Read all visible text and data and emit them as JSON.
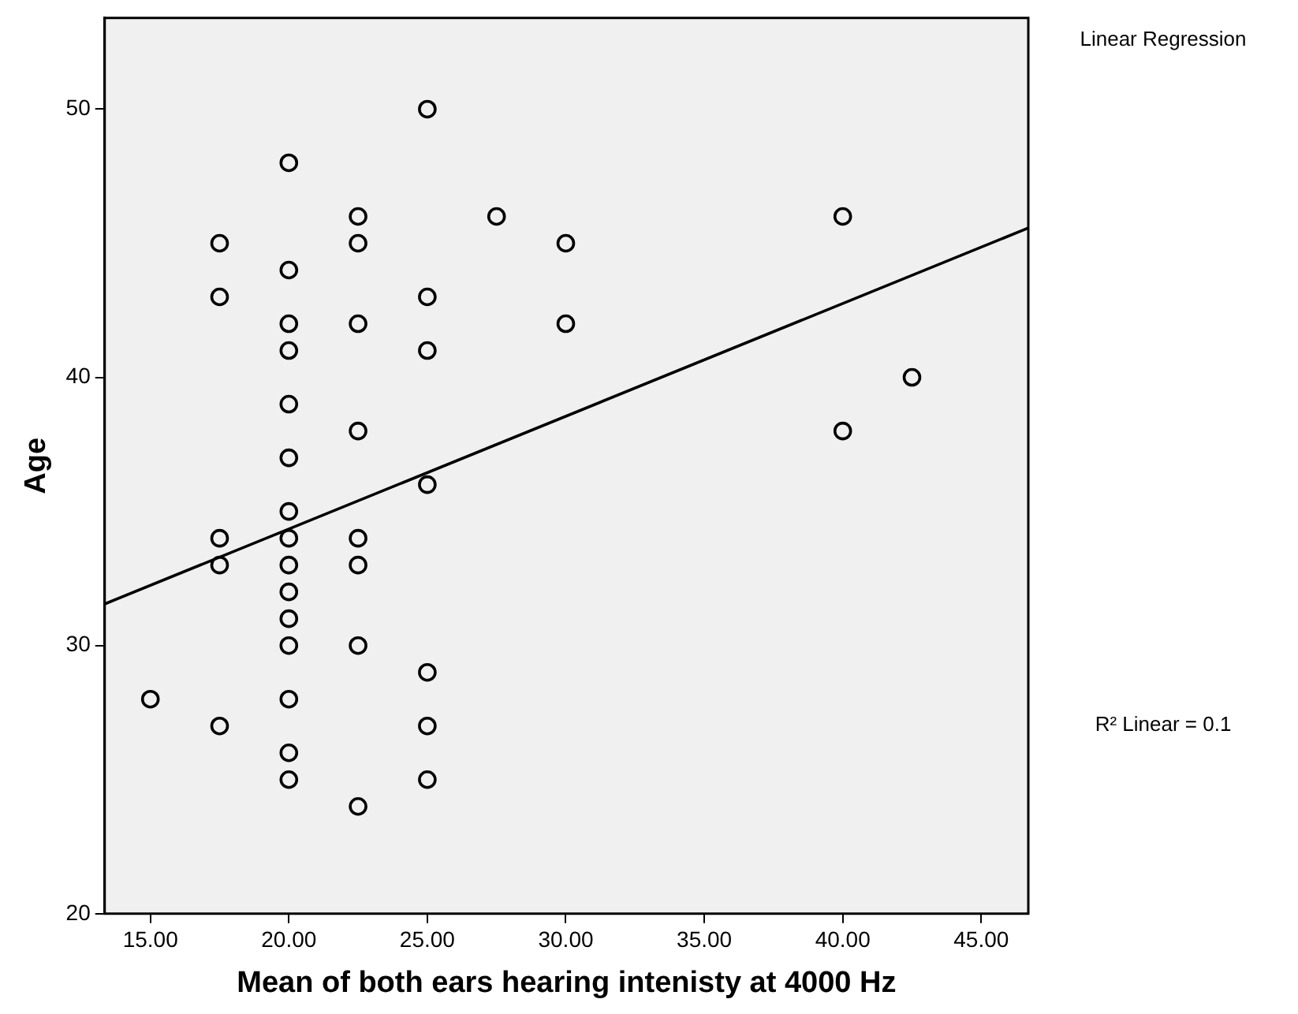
{
  "chart_data": {
    "type": "scatter",
    "xlabel": "Mean of both ears hearing intenisty at 4000 Hz",
    "ylabel": "Age",
    "xlim": [
      13.35,
      46.7
    ],
    "ylim": [
      20,
      53.4
    ],
    "xticks": [
      {
        "value": 15,
        "label": "15.00"
      },
      {
        "value": 20,
        "label": "20.00"
      },
      {
        "value": 25,
        "label": "25.00"
      },
      {
        "value": 30,
        "label": "30.00"
      },
      {
        "value": 35,
        "label": "35.00"
      },
      {
        "value": 40,
        "label": "40.00"
      },
      {
        "value": 45,
        "label": "45.00"
      }
    ],
    "yticks": [
      20,
      30,
      40,
      50
    ],
    "annotations": [
      "Linear Regression",
      "R² Linear = 0.1"
    ],
    "series": [
      {
        "marker": "circle",
        "color": "#000000",
        "x": [
          15,
          17.5,
          17.5,
          17.5,
          17.5,
          17.5,
          20,
          20,
          20,
          20,
          20,
          20,
          20,
          20,
          20,
          20,
          20,
          20,
          20,
          20,
          20,
          22.5,
          22.5,
          22.5,
          22.5,
          22.5,
          22.5,
          22.5,
          22.5,
          25,
          25,
          25,
          25,
          25,
          25,
          25,
          27.5,
          30,
          30,
          40,
          40,
          42.5
        ],
        "values": [
          28,
          45,
          43,
          34,
          33,
          27,
          48,
          44,
          42,
          41,
          39,
          37,
          35,
          34,
          33,
          32,
          31,
          30,
          28,
          26,
          25,
          46,
          45,
          42,
          38,
          34,
          33,
          30,
          24,
          50,
          43,
          41,
          36,
          29,
          27,
          25,
          46,
          45,
          42,
          46,
          38,
          40
        ]
      },
      {
        "type": "line",
        "marker": "none",
        "color": "#000000",
        "x": [
          13.35,
          46.7
        ],
        "values": [
          31.55,
          45.57
        ]
      }
    ]
  }
}
